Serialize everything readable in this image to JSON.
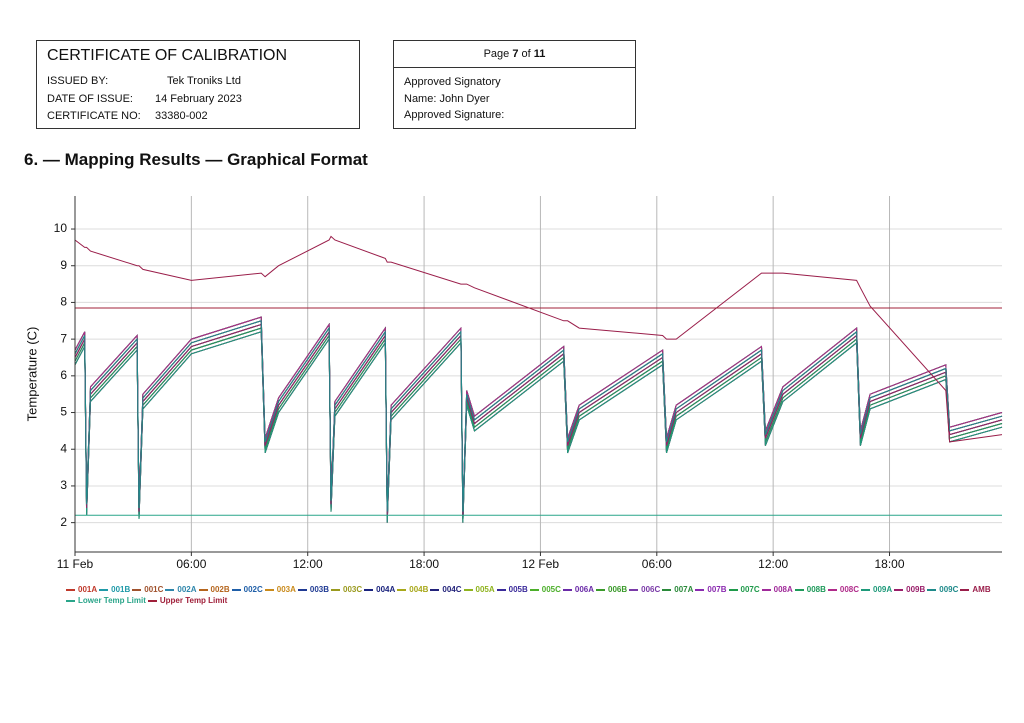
{
  "header": {
    "title": "CERTIFICATE OF CALIBRATION",
    "fields": [
      {
        "label": "ISSUED BY:",
        "value": "Tek Troniks Ltd"
      },
      {
        "label": "DATE OF ISSUE:",
        "value": "14 February 2023"
      },
      {
        "label": "CERTIFICATE NO:",
        "value": "33380-002"
      }
    ]
  },
  "page_box": {
    "page_word": "Page",
    "page": 7,
    "of_word": "of",
    "total": 11,
    "lines": [
      "Approved Signatory",
      "Name: John Dyer",
      "Approved Signature:"
    ]
  },
  "section_title": "6. — Mapping Results — Graphical Format",
  "chart_data": {
    "type": "line",
    "y_label": "Temperature (C)",
    "grid": true,
    "xlim": [
      0,
      47.8
    ],
    "ylim": [
      1.2,
      10.9
    ],
    "xticks": [
      {
        "value": 0,
        "label": "11 Feb"
      },
      {
        "value": 6,
        "label": "06:00"
      },
      {
        "value": 12,
        "label": "12:00"
      },
      {
        "value": 18,
        "label": "18:00"
      },
      {
        "value": 24,
        "label": "12 Feb"
      },
      {
        "value": 30,
        "label": "06:00"
      },
      {
        "value": 36,
        "label": "12:00"
      },
      {
        "value": 42,
        "label": "18:00"
      }
    ],
    "yticks": [
      2,
      3,
      4,
      5,
      6,
      7,
      8,
      9,
      10
    ],
    "x": [
      0,
      0.5,
      0.6,
      0.8,
      3.2,
      3.3,
      3.5,
      6,
      9.6,
      9.8,
      10.5,
      13.1,
      13.2,
      13.4,
      16.0,
      16.1,
      16.3,
      19.9,
      20.0,
      20.2,
      20.6,
      25.2,
      25.4,
      26,
      30.3,
      30.5,
      31,
      35.4,
      35.6,
      36.5,
      40.3,
      40.5,
      41,
      44.9,
      45.1,
      47.8
    ],
    "series": [
      {
        "name": "001A",
        "color": "#c0392b",
        "values": [
          6.5,
          7.0,
          2.4,
          5.5,
          6.9,
          2.3,
          5.3,
          6.8,
          7.4,
          4.1,
          5.2,
          7.2,
          2.5,
          5.1,
          7.1,
          2.2,
          5.0,
          7.1,
          2.2,
          5.4,
          4.7,
          6.6,
          4.1,
          5.0,
          6.5,
          4.1,
          5.0,
          6.6,
          4.3,
          5.5,
          7.1,
          4.3,
          5.3,
          6.1,
          4.4,
          4.8
        ]
      },
      {
        "name": "001B",
        "color": "#1f9aa8",
        "values": [
          6.6,
          7.1,
          2.5,
          5.6,
          7.0,
          2.4,
          5.4,
          6.9,
          7.5,
          4.2,
          5.3,
          7.3,
          2.6,
          5.2,
          7.2,
          2.3,
          5.1,
          7.2,
          2.3,
          5.5,
          4.8,
          6.7,
          4.2,
          5.1,
          6.6,
          4.2,
          5.1,
          6.7,
          4.4,
          5.6,
          7.2,
          4.4,
          5.4,
          6.2,
          4.5,
          4.9
        ]
      },
      {
        "name": "001C",
        "color": "#a0522d",
        "values": [
          6.4,
          6.9,
          2.3,
          5.4,
          6.8,
          2.2,
          5.2,
          6.7,
          7.3,
          4.0,
          5.1,
          7.1,
          2.4,
          5.0,
          7.0,
          2.1,
          4.9,
          7.0,
          2.1,
          5.3,
          4.6,
          6.5,
          4.0,
          4.9,
          6.4,
          4.0,
          4.9,
          6.5,
          4.2,
          5.4,
          7.0,
          4.2,
          5.2,
          6.0,
          4.3,
          4.7
        ]
      },
      {
        "name": "002A",
        "color": "#2e86ab",
        "values": [
          6.7,
          7.2,
          2.6,
          5.7,
          7.1,
          2.5,
          5.5,
          7.0,
          7.6,
          4.3,
          5.4,
          7.4,
          2.7,
          5.3,
          7.3,
          2.4,
          5.2,
          7.3,
          2.4,
          5.6,
          4.9,
          6.8,
          4.3,
          5.2,
          6.7,
          4.3,
          5.2,
          6.8,
          4.5,
          5.7,
          7.3,
          4.5,
          5.5,
          6.3,
          4.6,
          5.0
        ]
      },
      {
        "name": "002B",
        "color": "#b5651d",
        "values": [
          6.3,
          6.8,
          2.2,
          5.3,
          6.7,
          2.1,
          5.1,
          6.6,
          7.2,
          3.9,
          5.0,
          7.0,
          2.3,
          4.9,
          6.9,
          2.0,
          4.8,
          6.9,
          2.0,
          5.2,
          4.5,
          6.4,
          3.9,
          4.8,
          6.3,
          3.9,
          4.8,
          6.4,
          4.1,
          5.3,
          6.9,
          4.1,
          5.1,
          5.9,
          4.2,
          4.6
        ]
      },
      {
        "name": "002C",
        "color": "#1f5fa8",
        "values": [
          6.5,
          7.0,
          2.4,
          5.5,
          6.9,
          2.3,
          5.3,
          6.8,
          7.4,
          4.1,
          5.2,
          7.2,
          2.5,
          5.1,
          7.1,
          2.2,
          5.0,
          7.1,
          2.2,
          5.4,
          4.7,
          6.6,
          4.1,
          5.0,
          6.5,
          4.1,
          5.0,
          6.6,
          4.3,
          5.5,
          7.1,
          4.3,
          5.3,
          6.1,
          4.4,
          4.8
        ]
      },
      {
        "name": "003A",
        "color": "#c98a1b",
        "values": [
          6.6,
          7.1,
          2.5,
          5.6,
          7.0,
          2.4,
          5.4,
          6.9,
          7.5,
          4.2,
          5.3,
          7.3,
          2.6,
          5.2,
          7.2,
          2.3,
          5.1,
          7.2,
          2.3,
          5.5,
          4.8,
          6.7,
          4.2,
          5.1,
          6.6,
          4.2,
          5.1,
          6.7,
          4.4,
          5.6,
          7.2,
          4.4,
          5.4,
          6.2,
          4.5,
          4.9
        ]
      },
      {
        "name": "003B",
        "color": "#1f3a93",
        "values": [
          6.4,
          6.9,
          2.3,
          5.4,
          6.8,
          2.2,
          5.2,
          6.7,
          7.3,
          4.0,
          5.1,
          7.1,
          2.4,
          5.0,
          7.0,
          2.1,
          4.9,
          7.0,
          2.1,
          5.3,
          4.6,
          6.5,
          4.0,
          4.9,
          6.4,
          4.0,
          4.9,
          6.5,
          4.2,
          5.4,
          7.0,
          4.2,
          5.2,
          6.0,
          4.3,
          4.7
        ]
      },
      {
        "name": "003C",
        "color": "#9a9a1e",
        "values": [
          6.7,
          7.2,
          2.6,
          5.7,
          7.1,
          2.5,
          5.5,
          7.0,
          7.6,
          4.3,
          5.4,
          7.4,
          2.7,
          5.3,
          7.3,
          2.4,
          5.2,
          7.3,
          2.4,
          5.6,
          4.9,
          6.8,
          4.3,
          5.2,
          6.7,
          4.3,
          5.2,
          6.8,
          4.5,
          5.7,
          7.3,
          4.5,
          5.5,
          6.3,
          4.6,
          5.0
        ]
      },
      {
        "name": "004A",
        "color": "#1a237e",
        "values": [
          6.3,
          6.8,
          2.2,
          5.3,
          6.7,
          2.1,
          5.1,
          6.6,
          7.2,
          3.9,
          5.0,
          7.0,
          2.3,
          4.9,
          6.9,
          2.0,
          4.8,
          6.9,
          2.0,
          5.2,
          4.5,
          6.4,
          3.9,
          4.8,
          6.3,
          3.9,
          4.8,
          6.4,
          4.1,
          5.3,
          6.9,
          4.1,
          5.1,
          5.9,
          4.2,
          4.6
        ]
      },
      {
        "name": "004B",
        "color": "#a8a81a",
        "values": [
          6.5,
          7.0,
          2.4,
          5.5,
          6.9,
          2.3,
          5.3,
          6.8,
          7.4,
          4.1,
          5.2,
          7.2,
          2.5,
          5.1,
          7.1,
          2.2,
          5.0,
          7.1,
          2.2,
          5.4,
          4.7,
          6.6,
          4.1,
          5.0,
          6.5,
          4.1,
          5.0,
          6.6,
          4.3,
          5.5,
          7.1,
          4.3,
          5.3,
          6.1,
          4.4,
          4.8
        ]
      },
      {
        "name": "004C",
        "color": "#22227a",
        "values": [
          6.6,
          7.1,
          2.5,
          5.6,
          7.0,
          2.4,
          5.4,
          6.9,
          7.5,
          4.2,
          5.3,
          7.3,
          2.6,
          5.2,
          7.2,
          2.3,
          5.1,
          7.2,
          2.3,
          5.5,
          4.8,
          6.7,
          4.2,
          5.1,
          6.6,
          4.2,
          5.1,
          6.7,
          4.4,
          5.6,
          7.2,
          4.4,
          5.4,
          6.2,
          4.5,
          4.9
        ]
      },
      {
        "name": "005A",
        "color": "#8fb31e",
        "values": [
          6.4,
          6.9,
          2.3,
          5.4,
          6.8,
          2.2,
          5.2,
          6.7,
          7.3,
          4.0,
          5.1,
          7.1,
          2.4,
          5.0,
          7.0,
          2.1,
          4.9,
          7.0,
          2.1,
          5.3,
          4.6,
          6.5,
          4.0,
          4.9,
          6.4,
          4.0,
          4.9,
          6.5,
          4.2,
          5.4,
          7.0,
          4.2,
          5.2,
          6.0,
          4.3,
          4.7
        ]
      },
      {
        "name": "005B",
        "color": "#3a2a9a",
        "values": [
          6.7,
          7.2,
          2.6,
          5.7,
          7.1,
          2.5,
          5.5,
          7.0,
          7.6,
          4.3,
          5.4,
          7.4,
          2.7,
          5.3,
          7.3,
          2.4,
          5.2,
          7.3,
          2.4,
          5.6,
          4.9,
          6.8,
          4.3,
          5.2,
          6.7,
          4.3,
          5.2,
          6.8,
          4.5,
          5.7,
          7.3,
          4.5,
          5.5,
          6.3,
          4.6,
          5.0
        ]
      },
      {
        "name": "005C",
        "color": "#4caf2a",
        "values": [
          6.3,
          6.8,
          2.2,
          5.3,
          6.7,
          2.1,
          5.1,
          6.6,
          7.2,
          3.9,
          5.0,
          7.0,
          2.3,
          4.9,
          6.9,
          2.0,
          4.8,
          6.9,
          2.0,
          5.2,
          4.5,
          6.4,
          3.9,
          4.8,
          6.3,
          3.9,
          4.8,
          6.4,
          4.1,
          5.3,
          6.9,
          4.1,
          5.1,
          5.9,
          4.2,
          4.6
        ]
      },
      {
        "name": "006A",
        "color": "#6a2aa8",
        "values": [
          6.5,
          7.0,
          2.4,
          5.5,
          6.9,
          2.3,
          5.3,
          6.8,
          7.4,
          4.1,
          5.2,
          7.2,
          2.5,
          5.1,
          7.1,
          2.2,
          5.0,
          7.1,
          2.2,
          5.4,
          4.7,
          6.6,
          4.1,
          5.0,
          6.5,
          4.1,
          5.0,
          6.6,
          4.3,
          5.5,
          7.1,
          4.3,
          5.3,
          6.1,
          4.4,
          4.8
        ]
      },
      {
        "name": "006B",
        "color": "#3a9a2a",
        "values": [
          6.6,
          7.1,
          2.5,
          5.6,
          7.0,
          2.4,
          5.4,
          6.9,
          7.5,
          4.2,
          5.3,
          7.3,
          2.6,
          5.2,
          7.2,
          2.3,
          5.1,
          7.2,
          2.3,
          5.5,
          4.8,
          6.7,
          4.2,
          5.1,
          6.6,
          4.2,
          5.1,
          6.7,
          4.4,
          5.6,
          7.2,
          4.4,
          5.4,
          6.2,
          4.5,
          4.9
        ]
      },
      {
        "name": "006C",
        "color": "#7a3aa8",
        "values": [
          6.4,
          6.9,
          2.3,
          5.4,
          6.8,
          2.2,
          5.2,
          6.7,
          7.3,
          4.0,
          5.1,
          7.1,
          2.4,
          5.0,
          7.0,
          2.1,
          4.9,
          7.0,
          2.1,
          5.3,
          4.6,
          6.5,
          4.0,
          4.9,
          6.4,
          4.0,
          4.9,
          6.5,
          4.2,
          5.4,
          7.0,
          4.2,
          5.2,
          6.0,
          4.3,
          4.7
        ]
      },
      {
        "name": "007A",
        "color": "#2a8a3a",
        "values": [
          6.7,
          7.2,
          2.6,
          5.7,
          7.1,
          2.5,
          5.5,
          7.0,
          7.6,
          4.3,
          5.4,
          7.4,
          2.7,
          5.3,
          7.3,
          2.4,
          5.2,
          7.3,
          2.4,
          5.6,
          4.9,
          6.8,
          4.3,
          5.2,
          6.7,
          4.3,
          5.2,
          6.8,
          4.5,
          5.7,
          7.3,
          4.5,
          5.5,
          6.3,
          4.6,
          5.0
        ]
      },
      {
        "name": "007B",
        "color": "#8a2ab0",
        "values": [
          6.3,
          6.8,
          2.2,
          5.3,
          6.7,
          2.1,
          5.1,
          6.6,
          7.2,
          3.9,
          5.0,
          7.0,
          2.3,
          4.9,
          6.9,
          2.0,
          4.8,
          6.9,
          2.0,
          5.2,
          4.5,
          6.4,
          3.9,
          4.8,
          6.3,
          3.9,
          4.8,
          6.4,
          4.1,
          5.3,
          6.9,
          4.1,
          5.1,
          5.9,
          4.2,
          4.6
        ]
      },
      {
        "name": "007C",
        "color": "#1e9a4a",
        "values": [
          6.5,
          7.0,
          2.4,
          5.5,
          6.9,
          2.3,
          5.3,
          6.8,
          7.4,
          4.1,
          5.2,
          7.2,
          2.5,
          5.1,
          7.1,
          2.2,
          5.0,
          7.1,
          2.2,
          5.4,
          4.7,
          6.6,
          4.1,
          5.0,
          6.5,
          4.1,
          5.0,
          6.6,
          4.3,
          5.5,
          7.1,
          4.3,
          5.3,
          6.1,
          4.4,
          4.8
        ]
      },
      {
        "name": "008A",
        "color": "#a02a9a",
        "values": [
          6.6,
          7.1,
          2.5,
          5.6,
          7.0,
          2.4,
          5.4,
          6.9,
          7.5,
          4.2,
          5.3,
          7.3,
          2.6,
          5.2,
          7.2,
          2.3,
          5.1,
          7.2,
          2.3,
          5.5,
          4.8,
          6.7,
          4.2,
          5.1,
          6.6,
          4.2,
          5.1,
          6.7,
          4.4,
          5.6,
          7.2,
          4.4,
          5.4,
          6.2,
          4.5,
          4.9
        ]
      },
      {
        "name": "008B",
        "color": "#1e9a5a",
        "values": [
          6.4,
          6.9,
          2.3,
          5.4,
          6.8,
          2.2,
          5.2,
          6.7,
          7.3,
          4.0,
          5.1,
          7.1,
          2.4,
          5.0,
          7.0,
          2.1,
          4.9,
          7.0,
          2.1,
          5.3,
          4.6,
          6.5,
          4.0,
          4.9,
          6.4,
          4.0,
          4.9,
          6.5,
          4.2,
          5.4,
          7.0,
          4.2,
          5.2,
          6.0,
          4.3,
          4.7
        ]
      },
      {
        "name": "008C",
        "color": "#b02a8a",
        "values": [
          6.7,
          7.2,
          2.6,
          5.7,
          7.1,
          2.5,
          5.5,
          7.0,
          7.6,
          4.3,
          5.4,
          7.4,
          2.7,
          5.3,
          7.3,
          2.4,
          5.2,
          7.3,
          2.4,
          5.6,
          4.9,
          6.8,
          4.3,
          5.2,
          6.7,
          4.3,
          5.2,
          6.8,
          4.5,
          5.7,
          7.3,
          4.5,
          5.5,
          6.3,
          4.6,
          5.0
        ]
      },
      {
        "name": "009A",
        "color": "#1e9a7a",
        "values": [
          6.3,
          6.8,
          2.2,
          5.3,
          6.7,
          2.1,
          5.1,
          6.6,
          7.2,
          3.9,
          5.0,
          7.0,
          2.3,
          4.9,
          6.9,
          2.0,
          4.8,
          6.9,
          2.0,
          5.2,
          4.5,
          6.4,
          3.9,
          4.8,
          6.3,
          3.9,
          4.8,
          6.4,
          4.1,
          5.3,
          6.9,
          4.1,
          5.1,
          5.9,
          4.2,
          4.6
        ]
      },
      {
        "name": "009B",
        "color": "#9a1e6a",
        "values": [
          6.5,
          7.0,
          2.4,
          5.5,
          6.9,
          2.3,
          5.3,
          6.8,
          7.4,
          4.1,
          5.2,
          7.2,
          2.5,
          5.1,
          7.1,
          2.2,
          5.0,
          7.1,
          2.2,
          5.4,
          4.7,
          6.6,
          4.1,
          5.0,
          6.5,
          4.1,
          5.0,
          6.6,
          4.3,
          5.5,
          7.1,
          4.3,
          5.3,
          6.1,
          4.4,
          4.8
        ]
      },
      {
        "name": "009C",
        "color": "#1e8a8a",
        "values": [
          6.6,
          7.1,
          2.5,
          5.6,
          7.0,
          2.4,
          5.4,
          6.9,
          7.5,
          4.2,
          5.3,
          7.3,
          2.6,
          5.2,
          7.2,
          2.3,
          5.1,
          7.2,
          2.3,
          5.5,
          4.8,
          6.7,
          4.2,
          5.1,
          6.6,
          4.2,
          5.1,
          6.7,
          4.4,
          5.6,
          7.2,
          4.4,
          5.4,
          6.2,
          4.5,
          4.9
        ]
      },
      {
        "name": "AMB",
        "color": "#9a1e4a",
        "values": [
          9.7,
          9.5,
          9.5,
          9.4,
          9.0,
          9.0,
          8.9,
          8.6,
          8.8,
          8.7,
          9.0,
          9.7,
          9.8,
          9.7,
          9.2,
          9.1,
          9.1,
          8.5,
          8.5,
          8.5,
          8.4,
          7.5,
          7.5,
          7.3,
          7.1,
          7.0,
          7.0,
          8.8,
          8.8,
          8.8,
          8.6,
          8.4,
          7.9,
          5.6,
          4.2,
          4.4
        ]
      }
    ],
    "reference_lines": [
      {
        "name": "Lower Temp Limit",
        "color": "#2aa58a",
        "value": 2.2
      },
      {
        "name": "Upper Temp Limit",
        "color": "#a0203a",
        "value": 7.85
      }
    ]
  }
}
